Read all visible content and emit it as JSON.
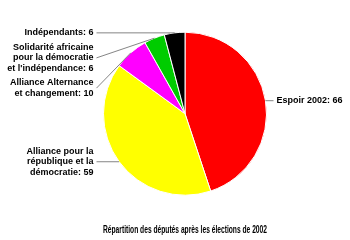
{
  "chart_data": {
    "type": "pie",
    "title": "Répartition des députés après les élections de 2002",
    "categories": [
      "Espoir 2002: 66",
      "Alliance pour la\nrépublique et la\ndémocratie: 59",
      "Alliance Alternance\net changement: 10",
      "Solidarité africaine\npour la démocratie\net l'indépendance: 6",
      "Indépendants: 6"
    ],
    "values": [
      66,
      59,
      10,
      6,
      6
    ],
    "colors": [
      "#ff0000",
      "#ffff00",
      "#ff00ff",
      "#00cc00",
      "#000000"
    ]
  }
}
